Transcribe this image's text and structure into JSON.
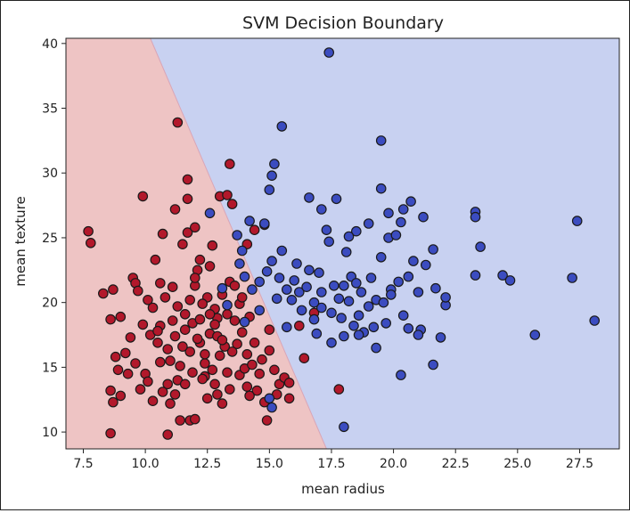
{
  "chart_data": {
    "type": "scatter",
    "title": "SVM Decision Boundary",
    "xlabel": "mean radius",
    "ylabel": "mean texture",
    "xlim": [
      6.8,
      29.1
    ],
    "ylim": [
      8.7,
      40.4
    ],
    "xticks": [
      7.5,
      10.0,
      12.5,
      15.0,
      17.5,
      20.0,
      22.5,
      25.0,
      27.5
    ],
    "xtick_labels": [
      "7.5",
      "10.0",
      "12.5",
      "15.0",
      "17.5",
      "20.0",
      "22.5",
      "25.0",
      "27.5"
    ],
    "yticks": [
      10,
      15,
      20,
      25,
      30,
      35,
      40
    ],
    "ytick_labels": [
      "10",
      "15",
      "20",
      "25",
      "30",
      "35",
      "40"
    ],
    "grid": false,
    "decision_boundary": {
      "points": [
        [
          10.2,
          40.4
        ],
        [
          17.3,
          8.7
        ]
      ],
      "left_region_color": "#eec4c4",
      "right_region_color": "#c8d1f1",
      "boundary_color": "#d9a6b8"
    },
    "colors": {
      "class_red": "#b2182b",
      "class_blue": "#3b4cc0",
      "edge": "#1a1a1a"
    },
    "series": [
      {
        "color": "#b2182b",
        "points": [
          [
            7.7,
            25.5
          ],
          [
            7.8,
            24.6
          ],
          [
            8.3,
            20.7
          ],
          [
            8.7,
            21.0
          ],
          [
            8.6,
            18.7
          ],
          [
            9.0,
            18.9
          ],
          [
            9.5,
            21.9
          ],
          [
            9.6,
            21.5
          ],
          [
            9.7,
            20.9
          ],
          [
            8.8,
            15.8
          ],
          [
            8.9,
            14.8
          ],
          [
            8.6,
            13.2
          ],
          [
            9.0,
            12.8
          ],
          [
            8.7,
            12.3
          ],
          [
            8.6,
            9.9
          ],
          [
            9.9,
            28.2
          ],
          [
            10.4,
            23.3
          ],
          [
            10.7,
            25.3
          ],
          [
            10.2,
            17.5
          ],
          [
            10.3,
            19.6
          ],
          [
            10.8,
            20.4
          ],
          [
            10.5,
            16.9
          ],
          [
            10.6,
            15.4
          ],
          [
            10.0,
            14.5
          ],
          [
            9.8,
            13.3
          ],
          [
            10.1,
            13.9
          ],
          [
            10.3,
            12.4
          ],
          [
            10.9,
            13.7
          ],
          [
            11.3,
            14.0
          ],
          [
            11.0,
            12.2
          ],
          [
            11.3,
            33.9
          ],
          [
            11.2,
            27.2
          ],
          [
            11.7,
            29.5
          ],
          [
            11.5,
            24.5
          ],
          [
            11.7,
            25.4
          ],
          [
            12.0,
            25.8
          ],
          [
            11.7,
            28.0
          ],
          [
            12.1,
            22.5
          ],
          [
            12.0,
            21.3
          ],
          [
            11.8,
            20.2
          ],
          [
            11.6,
            17.9
          ],
          [
            11.8,
            16.2
          ],
          [
            12.2,
            16.9
          ],
          [
            12.4,
            15.3
          ],
          [
            11.4,
            10.9
          ],
          [
            11.8,
            10.9
          ],
          [
            12.0,
            11.0
          ],
          [
            10.9,
            9.8
          ],
          [
            12.0,
            21.9
          ],
          [
            12.7,
            24.4
          ],
          [
            12.5,
            20.4
          ],
          [
            12.8,
            19.5
          ],
          [
            12.9,
            18.8
          ],
          [
            12.6,
            17.6
          ],
          [
            12.4,
            14.3
          ],
          [
            12.8,
            13.7
          ],
          [
            12.9,
            12.9
          ],
          [
            13.1,
            12.2
          ],
          [
            12.5,
            12.6
          ],
          [
            13.0,
            28.2
          ],
          [
            13.3,
            28.3
          ],
          [
            13.4,
            30.7
          ],
          [
            13.5,
            27.6
          ],
          [
            13.4,
            21.6
          ],
          [
            13.6,
            21.3
          ],
          [
            13.1,
            20.6
          ],
          [
            13.8,
            19.9
          ],
          [
            13.3,
            19.1
          ],
          [
            13.9,
            17.7
          ],
          [
            13.7,
            16.8
          ],
          [
            13.5,
            16.2
          ],
          [
            13.3,
            14.6
          ],
          [
            13.8,
            14.4
          ],
          [
            13.4,
            13.3
          ],
          [
            14.0,
            14.9
          ],
          [
            14.3,
            15.2
          ],
          [
            14.4,
            16.9
          ],
          [
            14.1,
            13.5
          ],
          [
            14.5,
            13.2
          ],
          [
            14.2,
            12.8
          ],
          [
            14.8,
            12.3
          ],
          [
            14.6,
            14.5
          ],
          [
            14.4,
            25.6
          ],
          [
            14.8,
            26.0
          ],
          [
            14.1,
            24.5
          ],
          [
            15.0,
            17.9
          ],
          [
            15.2,
            14.8
          ],
          [
            15.4,
            13.7
          ],
          [
            15.6,
            14.2
          ],
          [
            15.8,
            13.8
          ],
          [
            15.3,
            12.9
          ],
          [
            15.8,
            12.6
          ],
          [
            14.9,
            10.9
          ],
          [
            16.2,
            18.2
          ],
          [
            16.8,
            19.2
          ],
          [
            16.4,
            15.7
          ],
          [
            17.8,
            13.3
          ],
          [
            9.2,
            16.1
          ],
          [
            9.4,
            17.3
          ],
          [
            9.3,
            14.5
          ],
          [
            9.6,
            15.3
          ],
          [
            9.9,
            18.3
          ],
          [
            10.6,
            18.2
          ],
          [
            11.1,
            18.6
          ],
          [
            11.3,
            19.7
          ],
          [
            11.6,
            19.1
          ],
          [
            11.9,
            18.4
          ],
          [
            12.2,
            18.7
          ],
          [
            12.3,
            19.9
          ],
          [
            12.6,
            19.1
          ],
          [
            12.1,
            17.2
          ],
          [
            11.5,
            16.6
          ],
          [
            11.2,
            17.4
          ],
          [
            10.9,
            16.4
          ],
          [
            10.5,
            17.8
          ],
          [
            11.0,
            15.5
          ],
          [
            11.4,
            15.1
          ],
          [
            11.9,
            14.6
          ],
          [
            12.3,
            14.1
          ],
          [
            12.7,
            14.8
          ],
          [
            13.0,
            15.9
          ],
          [
            13.2,
            16.6
          ],
          [
            12.9,
            17.4
          ],
          [
            11.6,
            13.7
          ],
          [
            11.2,
            12.9
          ],
          [
            10.7,
            13.1
          ],
          [
            12.6,
            22.8
          ],
          [
            12.2,
            23.3
          ],
          [
            11.1,
            21.2
          ],
          [
            10.6,
            21.5
          ],
          [
            10.1,
            20.2
          ],
          [
            12.8,
            18.3
          ],
          [
            13.6,
            18.6
          ],
          [
            14.2,
            18.9
          ],
          [
            13.9,
            20.4
          ],
          [
            14.1,
            16.0
          ],
          [
            14.7,
            15.6
          ],
          [
            15.0,
            16.3
          ],
          [
            13.1,
            17.1
          ],
          [
            12.4,
            16.0
          ]
        ]
      },
      {
        "color": "#3b4cc0",
        "points": [
          [
            17.4,
            39.3
          ],
          [
            15.5,
            33.6
          ],
          [
            15.2,
            30.7
          ],
          [
            15.1,
            29.8
          ],
          [
            15.0,
            28.7
          ],
          [
            12.6,
            26.9
          ],
          [
            14.2,
            26.3
          ],
          [
            14.8,
            26.1
          ],
          [
            16.6,
            28.1
          ],
          [
            17.1,
            27.2
          ],
          [
            17.7,
            28.0
          ],
          [
            17.3,
            25.6
          ],
          [
            17.4,
            24.7
          ],
          [
            18.1,
            23.9
          ],
          [
            17.6,
            21.3
          ],
          [
            17.0,
            22.3
          ],
          [
            16.6,
            22.5
          ],
          [
            16.1,
            23.0
          ],
          [
            15.5,
            24.0
          ],
          [
            15.1,
            23.2
          ],
          [
            14.9,
            22.4
          ],
          [
            14.6,
            21.6
          ],
          [
            14.3,
            21.0
          ],
          [
            14.0,
            22.0
          ],
          [
            13.8,
            23.0
          ],
          [
            13.9,
            24.0
          ],
          [
            15.4,
            21.9
          ],
          [
            15.7,
            21.0
          ],
          [
            15.9,
            20.2
          ],
          [
            16.2,
            20.8
          ],
          [
            16.5,
            21.2
          ],
          [
            16.3,
            19.4
          ],
          [
            16.8,
            18.7
          ],
          [
            17.1,
            19.6
          ],
          [
            17.5,
            19.2
          ],
          [
            17.8,
            20.3
          ],
          [
            18.0,
            21.3
          ],
          [
            18.3,
            22.0
          ],
          [
            18.5,
            21.5
          ],
          [
            18.7,
            20.8
          ],
          [
            18.2,
            20.1
          ],
          [
            18.6,
            19.0
          ],
          [
            19.0,
            19.7
          ],
          [
            19.3,
            20.2
          ],
          [
            19.6,
            20.0
          ],
          [
            19.9,
            21.0
          ],
          [
            20.2,
            21.6
          ],
          [
            20.6,
            22.0
          ],
          [
            21.0,
            20.8
          ],
          [
            21.3,
            22.9
          ],
          [
            20.8,
            23.2
          ],
          [
            19.5,
            23.5
          ],
          [
            19.8,
            25.0
          ],
          [
            20.1,
            25.2
          ],
          [
            19.5,
            28.8
          ],
          [
            20.4,
            27.2
          ],
          [
            20.7,
            27.8
          ],
          [
            21.2,
            26.6
          ],
          [
            20.3,
            26.2
          ],
          [
            19.8,
            26.9
          ],
          [
            19.0,
            26.1
          ],
          [
            18.5,
            25.5
          ],
          [
            18.2,
            25.1
          ],
          [
            19.5,
            32.5
          ],
          [
            23.3,
            27.0
          ],
          [
            23.3,
            26.6
          ],
          [
            23.5,
            24.3
          ],
          [
            24.4,
            22.1
          ],
          [
            24.7,
            21.7
          ],
          [
            23.3,
            22.1
          ],
          [
            22.1,
            19.8
          ],
          [
            21.7,
            21.1
          ],
          [
            21.1,
            17.9
          ],
          [
            20.6,
            18.0
          ],
          [
            19.7,
            18.4
          ],
          [
            19.2,
            18.1
          ],
          [
            18.8,
            17.7
          ],
          [
            18.6,
            17.5
          ],
          [
            18.0,
            17.4
          ],
          [
            17.5,
            16.9
          ],
          [
            18.0,
            10.4
          ],
          [
            20.3,
            14.4
          ],
          [
            21.6,
            15.2
          ],
          [
            21.9,
            17.3
          ],
          [
            21.0,
            17.5
          ],
          [
            19.3,
            16.5
          ],
          [
            25.7,
            17.5
          ],
          [
            27.2,
            21.9
          ],
          [
            27.4,
            26.3
          ],
          [
            28.1,
            18.6
          ],
          [
            15.1,
            11.9
          ],
          [
            15.0,
            12.6
          ],
          [
            13.7,
            25.2
          ],
          [
            15.3,
            20.3
          ],
          [
            14.6,
            19.4
          ],
          [
            15.7,
            18.1
          ],
          [
            16.9,
            17.6
          ],
          [
            18.4,
            18.2
          ],
          [
            19.1,
            21.9
          ],
          [
            19.9,
            20.6
          ],
          [
            20.4,
            19.0
          ],
          [
            21.6,
            24.1
          ],
          [
            22.1,
            20.4
          ],
          [
            17.1,
            20.8
          ],
          [
            16.8,
            20.0
          ],
          [
            16.0,
            21.7
          ],
          [
            17.9,
            18.8
          ],
          [
            14.0,
            18.5
          ],
          [
            13.3,
            19.8
          ],
          [
            13.1,
            21.1
          ]
        ]
      }
    ]
  }
}
